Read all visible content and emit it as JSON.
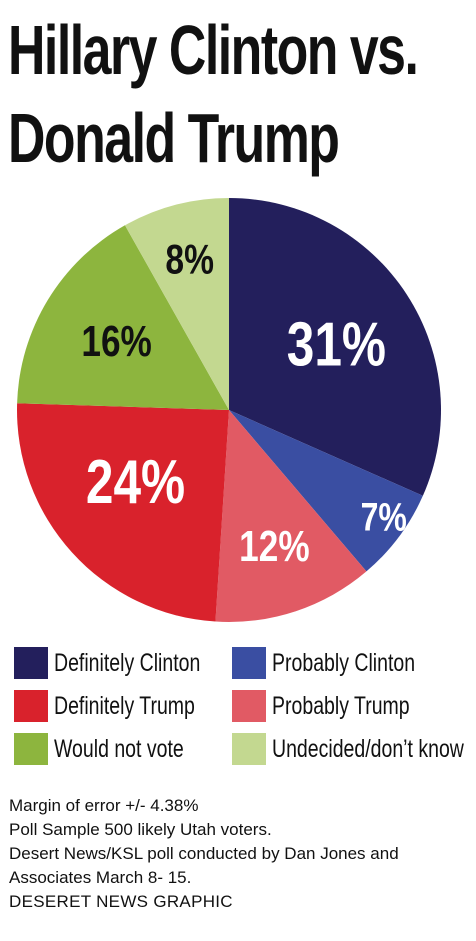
{
  "title": {
    "line1": "Hillary Clinton vs.",
    "line2": "Donald Trump"
  },
  "chart_data": {
    "type": "pie",
    "title": "Hillary Clinton vs. Donald Trump",
    "slices": [
      {
        "label": "Definitely Clinton",
        "value": 31,
        "display": "31%",
        "color": "#231f5c",
        "label_color": "#ffffff"
      },
      {
        "label": "Probably Clinton",
        "value": 7,
        "display": "7%",
        "color": "#3a4ea2",
        "label_color": "#ffffff"
      },
      {
        "label": "Probably Trump",
        "value": 12,
        "display": "12%",
        "color": "#e15a64",
        "label_color": "#ffffff"
      },
      {
        "label": "Definitely Trump",
        "value": 24,
        "display": "24%",
        "color": "#d9222c",
        "label_color": "#ffffff"
      },
      {
        "label": "Would not vote",
        "value": 16,
        "display": "16%",
        "color": "#8db53e",
        "label_color": "#111111"
      },
      {
        "label": "Undecided/don’t know",
        "value": 8,
        "display": "8%",
        "color": "#c3d890",
        "label_color": "#111111"
      }
    ],
    "start": "12 o'clock",
    "direction": "clockwise"
  },
  "legend": [
    [
      {
        "label": "Definitely Clinton",
        "color": "#231f5c"
      },
      {
        "label": "Probably Clinton",
        "color": "#3a4ea2"
      }
    ],
    [
      {
        "label": "Definitely Trump",
        "color": "#d9222c"
      },
      {
        "label": "Probably Trump",
        "color": "#e15a64"
      }
    ],
    [
      {
        "label": "Would not vote",
        "color": "#8db53e"
      },
      {
        "label": "Undecided/don’t know",
        "color": "#c3d890"
      }
    ]
  ],
  "notes": {
    "margin": "Margin of error +/- 4.38%",
    "sample": "Poll Sample 500 likely Utah voters.",
    "source_line1": "Desert News/KSL poll conducted by Dan Jones and",
    "source_line2": "Associates March 8- 15.",
    "credit": "DESERET NEWS GRAPHIC"
  }
}
